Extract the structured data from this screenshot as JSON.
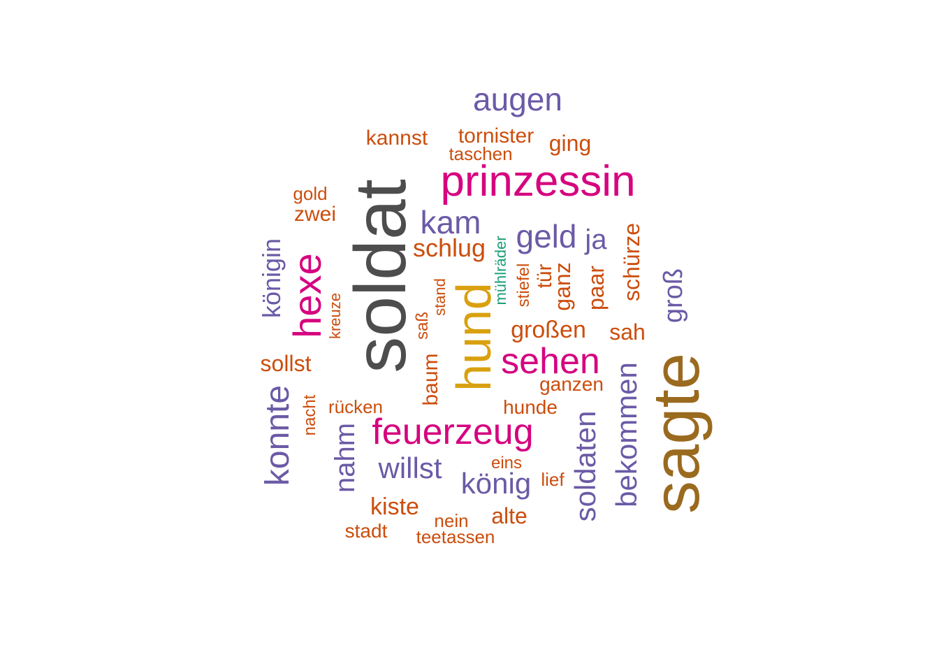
{
  "colors": {
    "dark_gray": "#4d4d4d",
    "brown": "#9a6a1e",
    "magenta": "#d6037f",
    "gold": "#d9a10f",
    "purple": "#6b5aa6",
    "orange": "#cc4d0c",
    "green": "#1b9e77"
  },
  "words": [
    {
      "text": "soldat",
      "color": "dark_gray",
      "rotated": true
    },
    {
      "text": "sagte",
      "color": "brown",
      "rotated": true
    },
    {
      "text": "prinzessin",
      "color": "magenta",
      "rotated": false
    },
    {
      "text": "hund",
      "color": "gold",
      "rotated": true
    },
    {
      "text": "feuerzeug",
      "color": "magenta",
      "rotated": false
    },
    {
      "text": "hexe",
      "color": "magenta",
      "rotated": true
    },
    {
      "text": "sehen",
      "color": "magenta",
      "rotated": false
    },
    {
      "text": "augen",
      "color": "purple",
      "rotated": false
    },
    {
      "text": "geld",
      "color": "purple",
      "rotated": false
    },
    {
      "text": "kam",
      "color": "purple",
      "rotated": false
    },
    {
      "text": "konnte",
      "color": "purple",
      "rotated": true
    },
    {
      "text": "soldaten",
      "color": "purple",
      "rotated": true
    },
    {
      "text": "bekommen",
      "color": "purple",
      "rotated": true
    },
    {
      "text": "könig",
      "color": "purple",
      "rotated": false
    },
    {
      "text": "willst",
      "color": "purple",
      "rotated": false
    },
    {
      "text": "nahm",
      "color": "purple",
      "rotated": true
    },
    {
      "text": "königin",
      "color": "purple",
      "rotated": true
    },
    {
      "text": "groß",
      "color": "purple",
      "rotated": true
    },
    {
      "text": "ja",
      "color": "purple",
      "rotated": false
    },
    {
      "text": "schlug",
      "color": "orange",
      "rotated": false
    },
    {
      "text": "schürze",
      "color": "orange",
      "rotated": true
    },
    {
      "text": "großen",
      "color": "orange",
      "rotated": false
    },
    {
      "text": "kiste",
      "color": "orange",
      "rotated": false
    },
    {
      "text": "paar",
      "color": "orange",
      "rotated": true
    },
    {
      "text": "ganz",
      "color": "orange",
      "rotated": true
    },
    {
      "text": "tür",
      "color": "orange",
      "rotated": true
    },
    {
      "text": "sah",
      "color": "orange",
      "rotated": false
    },
    {
      "text": "sollst",
      "color": "orange",
      "rotated": false
    },
    {
      "text": "alte",
      "color": "orange",
      "rotated": false
    },
    {
      "text": "kannst",
      "color": "orange",
      "rotated": false
    },
    {
      "text": "tornister",
      "color": "orange",
      "rotated": false
    },
    {
      "text": "ging",
      "color": "orange",
      "rotated": false
    },
    {
      "text": "baum",
      "color": "orange",
      "rotated": true
    },
    {
      "text": "ganzen",
      "color": "orange",
      "rotated": false
    },
    {
      "text": "hunde",
      "color": "orange",
      "rotated": false
    },
    {
      "text": "stadt",
      "color": "orange",
      "rotated": false
    },
    {
      "text": "taschen",
      "color": "orange",
      "rotated": false
    },
    {
      "text": "zwei",
      "color": "orange",
      "rotated": false
    },
    {
      "text": "gold",
      "color": "orange",
      "rotated": false
    },
    {
      "text": "rücken",
      "color": "orange",
      "rotated": false
    },
    {
      "text": "nacht",
      "color": "orange",
      "rotated": true
    },
    {
      "text": "kreuze",
      "color": "orange",
      "rotated": true
    },
    {
      "text": "saß",
      "color": "orange",
      "rotated": true
    },
    {
      "text": "stand",
      "color": "orange",
      "rotated": true
    },
    {
      "text": "stiefel",
      "color": "orange",
      "rotated": true
    },
    {
      "text": "eins",
      "color": "orange",
      "rotated": false
    },
    {
      "text": "lief",
      "color": "orange",
      "rotated": false
    },
    {
      "text": "nein",
      "color": "orange",
      "rotated": false
    },
    {
      "text": "teetassen",
      "color": "orange",
      "rotated": false
    },
    {
      "text": "mühlräder",
      "color": "green",
      "rotated": true
    }
  ]
}
